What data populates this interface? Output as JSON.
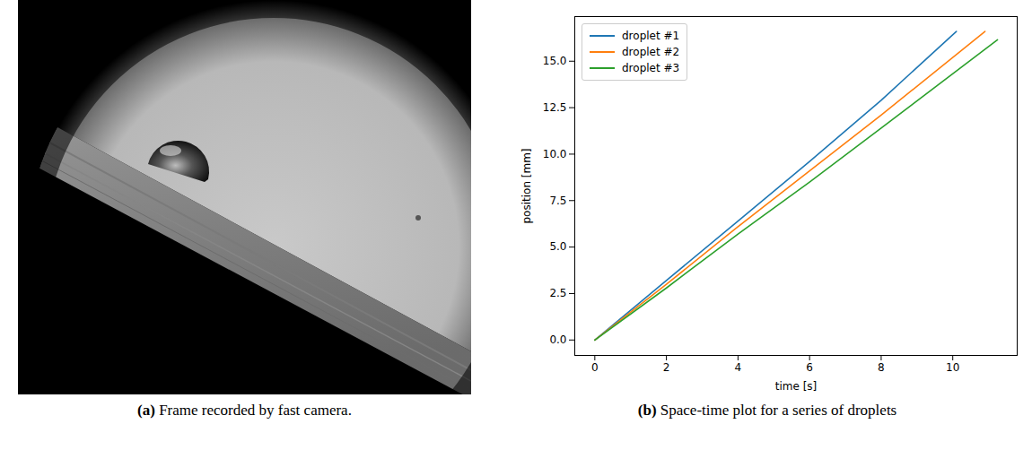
{
  "photo": {
    "caption": "(a) Frame recorded by fast camera."
  },
  "chart_data": {
    "type": "line",
    "caption": "(b) Space-time plot for a series of droplets",
    "x_label": "time [s]",
    "y_label": "position [mm]",
    "series": [
      {
        "name": "droplet #1",
        "color": "#1f77b4",
        "x": [
          0,
          2,
          4,
          6,
          8,
          10.1
        ],
        "values": [
          0,
          3.2,
          6.4,
          9.6,
          12.9,
          16.6
        ]
      },
      {
        "name": "droplet #2",
        "color": "#ff7f0e",
        "x": [
          0,
          2,
          4,
          6,
          8,
          10.9
        ],
        "values": [
          0,
          3.0,
          6.1,
          9.1,
          12.1,
          16.6
        ]
      },
      {
        "name": "droplet #3",
        "color": "#2ca02c",
        "x": [
          0,
          2,
          4,
          6,
          8,
          11.25
        ],
        "values": [
          0,
          2.8,
          5.7,
          8.5,
          11.4,
          16.15
        ]
      }
    ],
    "xlim": [
      -0.56,
      11.8
    ],
    "ylim": [
      -0.83,
      17.4
    ],
    "xticks": [
      0,
      2,
      4,
      6,
      8,
      10
    ],
    "yticks": [
      {
        "value": 0,
        "label": "0.0"
      },
      2.5,
      {
        "value": 5,
        "label": "5.0"
      },
      7.5,
      {
        "value": 10,
        "label": "10.0"
      },
      12.5,
      {
        "value": 15,
        "label": "15.0"
      }
    ],
    "grid": false,
    "legend": "upper left"
  }
}
